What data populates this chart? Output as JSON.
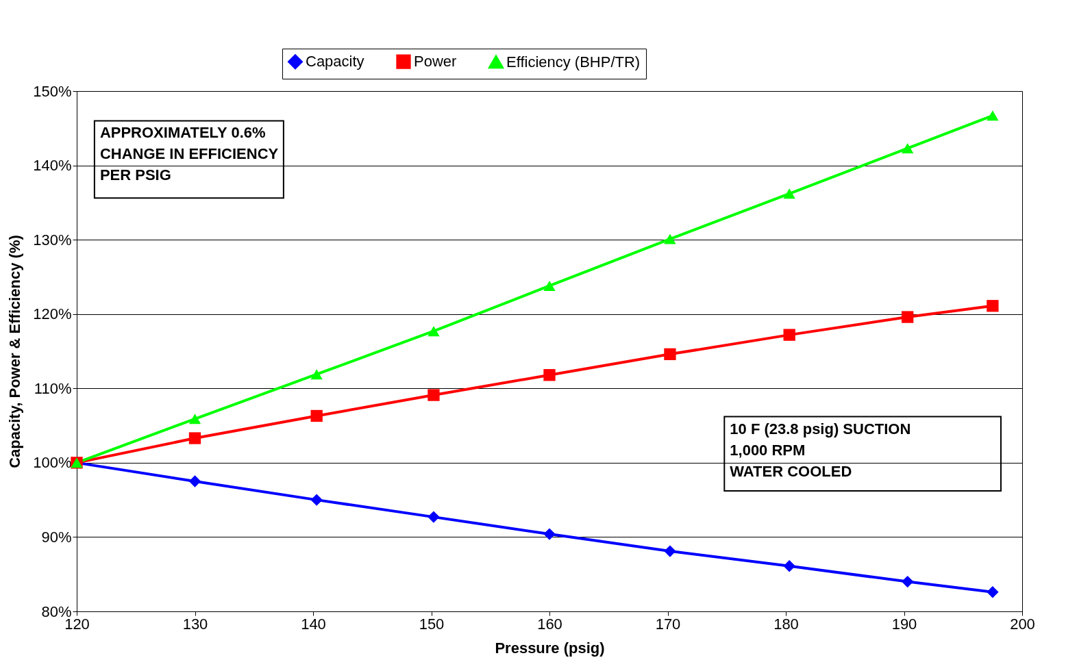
{
  "chart_data": {
    "type": "line",
    "xlabel": "Pressure (psig)",
    "ylabel": "Capacity, Power & Efficiency (%)",
    "x": [
      120,
      130,
      140.3,
      150.2,
      160,
      170.2,
      180.3,
      190.3,
      197.5
    ],
    "series": [
      {
        "name": "Capacity",
        "color": "#0000ff",
        "marker": "diamond",
        "values": [
          100,
          97.5,
          95.0,
          92.7,
          90.4,
          88.1,
          86.1,
          84.0,
          82.6
        ]
      },
      {
        "name": "Power",
        "color": "#ff0000",
        "marker": "square",
        "values": [
          100,
          103.3,
          106.3,
          109.1,
          111.8,
          114.6,
          117.2,
          119.6,
          121.1
        ]
      },
      {
        "name": "Efficiency (BHP/TR)",
        "color": "#00ff00",
        "marker": "triangle",
        "values": [
          100,
          105.9,
          111.9,
          117.7,
          123.8,
          130.1,
          136.2,
          142.3,
          146.7
        ]
      }
    ],
    "xlim": [
      120,
      200
    ],
    "xticks": [
      120,
      130,
      140,
      150,
      160,
      170,
      180,
      190,
      200
    ],
    "ylim": [
      80,
      150
    ],
    "yticks": [
      {
        "value": 80,
        "label": "80%"
      },
      {
        "value": 90,
        "label": "90%"
      },
      {
        "value": 100,
        "label": "100%"
      },
      {
        "value": 110,
        "label": "110%"
      },
      {
        "value": 120,
        "label": "120%"
      },
      {
        "value": 130,
        "label": "130%"
      },
      {
        "value": 140,
        "label": "140%"
      },
      {
        "value": 150,
        "label": "150%"
      }
    ],
    "grid": "y",
    "legend": "top",
    "line_style": "solid",
    "annotations": [
      "APPROXIMATELY 0.6%\nCHANGE IN EFFICIENCY\nPER PSIG",
      "10 F (23.8 psig) SUCTION\n1,000 RPM\nWATER COOLED"
    ]
  }
}
